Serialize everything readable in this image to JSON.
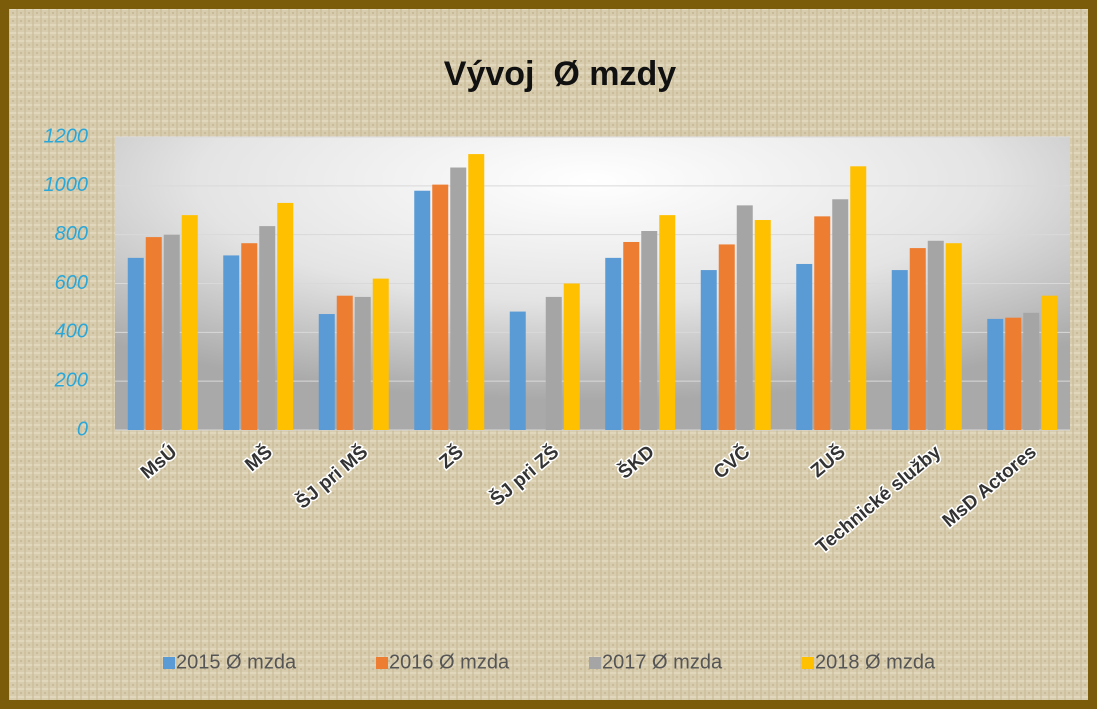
{
  "chart_data": {
    "type": "bar",
    "title": "Vývoj  Ø mzdy",
    "categories": [
      "MsÚ",
      "MŠ",
      "ŠJ pri MŠ",
      "ZŠ",
      "ŠJ pri ZŠ",
      "ŠKD",
      "CVČ",
      "ZUŠ",
      "Technické služby",
      "MsD Actores"
    ],
    "series": [
      {
        "name": "2015 Ø mzda",
        "color": "#5b9bd5",
        "values": [
          705,
          715,
          475,
          980,
          485,
          705,
          655,
          680,
          655,
          455
        ]
      },
      {
        "name": "2016 Ø mzda",
        "color": "#ed7d31",
        "values": [
          790,
          765,
          550,
          1005,
          null,
          770,
          760,
          875,
          745,
          460
        ]
      },
      {
        "name": "2017 Ø mzda",
        "color": "#a5a5a5",
        "values": [
          800,
          835,
          545,
          1075,
          545,
          815,
          920,
          945,
          775,
          480
        ]
      },
      {
        "name": "2018 Ø mzda",
        "color": "#ffc000",
        "values": [
          880,
          930,
          620,
          1130,
          600,
          880,
          860,
          1080,
          765,
          550
        ]
      }
    ],
    "ylim": [
      0,
      1200
    ],
    "yticks": [
      0,
      200,
      400,
      600,
      800,
      1000,
      1200
    ],
    "grid": true,
    "legend": "bottom"
  }
}
